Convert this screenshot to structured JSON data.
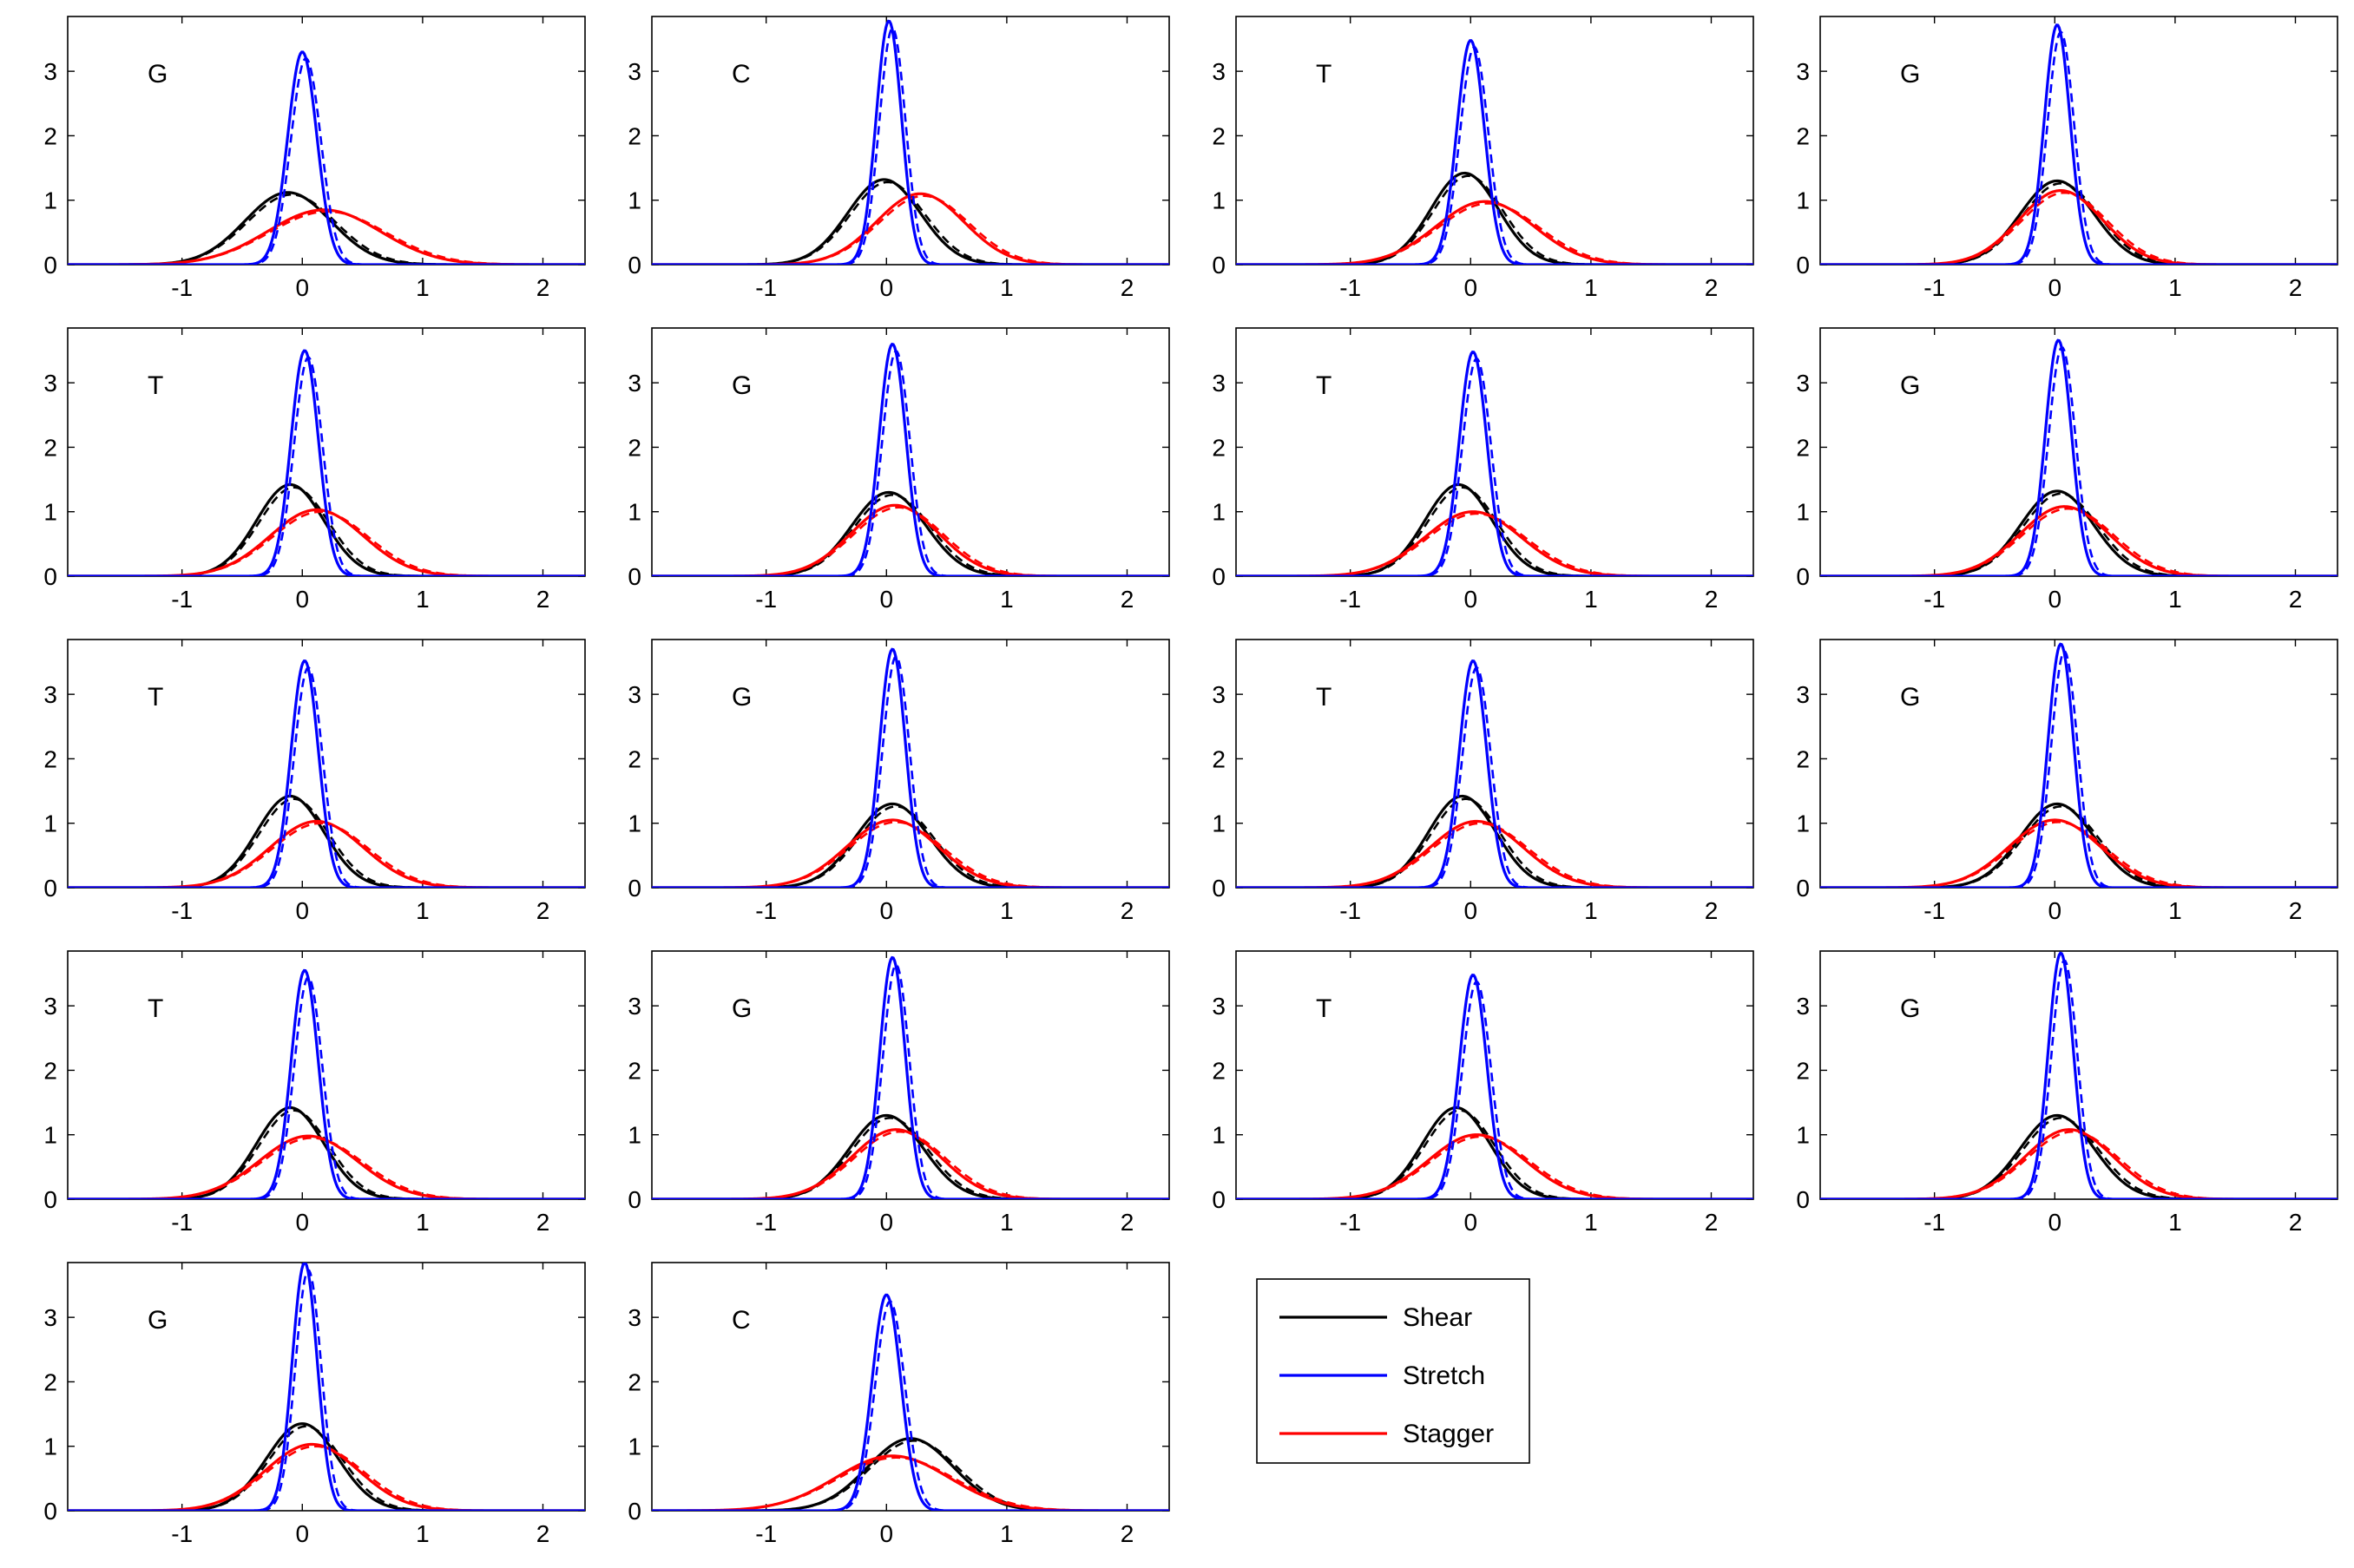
{
  "chart_data": {
    "type": "line",
    "layout": {
      "rows": 5,
      "cols": 4
    },
    "x_range": [
      -1.95,
      2.35
    ],
    "y_range": [
      0,
      3.85
    ],
    "x_ticks": [
      -1,
      0,
      1,
      2
    ],
    "y_ticks": [
      0,
      1,
      2,
      3
    ],
    "grid": false,
    "legend": {
      "placement": "inside-grid-row5-col3",
      "entries": [
        {
          "name": "Shear",
          "color": "#000000"
        },
        {
          "name": "Stretch",
          "color": "#0000ff"
        },
        {
          "name": "Stagger",
          "color": "#ff0000"
        }
      ]
    },
    "series_style": {
      "solid": "simulation",
      "dashed": "fitted"
    },
    "panels": [
      {
        "label": "G",
        "shear": {
          "mu": -0.12,
          "peak": 1.12
        },
        "stretch": {
          "mu": 0.0,
          "peak": 3.3
        },
        "stagger": {
          "mu": 0.18,
          "peak": 0.85
        }
      },
      {
        "label": "C",
        "shear": {
          "mu": -0.02,
          "peak": 1.32
        },
        "stretch": {
          "mu": 0.02,
          "peak": 3.78
        },
        "stagger": {
          "mu": 0.28,
          "peak": 1.1
        }
      },
      {
        "label": "T",
        "shear": {
          "mu": -0.05,
          "peak": 1.42
        },
        "stretch": {
          "mu": 0.0,
          "peak": 3.48
        },
        "stagger": {
          "mu": 0.12,
          "peak": 0.98
        }
      },
      {
        "label": "G",
        "shear": {
          "mu": 0.02,
          "peak": 1.3
        },
        "stretch": {
          "mu": 0.02,
          "peak": 3.72
        },
        "stagger": {
          "mu": 0.05,
          "peak": 1.15
        }
      },
      {
        "label": "T",
        "shear": {
          "mu": -0.1,
          "peak": 1.42
        },
        "stretch": {
          "mu": 0.02,
          "peak": 3.5
        },
        "stagger": {
          "mu": 0.12,
          "peak": 1.03
        }
      },
      {
        "label": "G",
        "shear": {
          "mu": 0.02,
          "peak": 1.3
        },
        "stretch": {
          "mu": 0.05,
          "peak": 3.6
        },
        "stagger": {
          "mu": 0.07,
          "peak": 1.1
        }
      },
      {
        "label": "T",
        "shear": {
          "mu": -0.1,
          "peak": 1.42
        },
        "stretch": {
          "mu": 0.02,
          "peak": 3.48
        },
        "stagger": {
          "mu": 0.02,
          "peak": 1.0
        }
      },
      {
        "label": "G",
        "shear": {
          "mu": 0.02,
          "peak": 1.32
        },
        "stretch": {
          "mu": 0.03,
          "peak": 3.66
        },
        "stagger": {
          "mu": 0.08,
          "peak": 1.08
        }
      },
      {
        "label": "T",
        "shear": {
          "mu": -0.1,
          "peak": 1.42
        },
        "stretch": {
          "mu": 0.02,
          "peak": 3.52
        },
        "stagger": {
          "mu": 0.12,
          "peak": 1.03
        }
      },
      {
        "label": "G",
        "shear": {
          "mu": 0.05,
          "peak": 1.3
        },
        "stretch": {
          "mu": 0.05,
          "peak": 3.7
        },
        "stagger": {
          "mu": 0.05,
          "peak": 1.05
        }
      },
      {
        "label": "T",
        "shear": {
          "mu": -0.07,
          "peak": 1.42
        },
        "stretch": {
          "mu": 0.02,
          "peak": 3.52
        },
        "stagger": {
          "mu": 0.05,
          "peak": 1.03
        }
      },
      {
        "label": "G",
        "shear": {
          "mu": 0.02,
          "peak": 1.3
        },
        "stretch": {
          "mu": 0.05,
          "peak": 3.78
        },
        "stagger": {
          "mu": 0.0,
          "peak": 1.05
        }
      },
      {
        "label": "T",
        "shear": {
          "mu": -0.1,
          "peak": 1.42
        },
        "stretch": {
          "mu": 0.02,
          "peak": 3.55
        },
        "stagger": {
          "mu": 0.05,
          "peak": 0.98
        }
      },
      {
        "label": "G",
        "shear": {
          "mu": 0.0,
          "peak": 1.3
        },
        "stretch": {
          "mu": 0.05,
          "peak": 3.75
        },
        "stagger": {
          "mu": 0.08,
          "peak": 1.08
        }
      },
      {
        "label": "T",
        "shear": {
          "mu": -0.12,
          "peak": 1.42
        },
        "stretch": {
          "mu": 0.02,
          "peak": 3.48
        },
        "stagger": {
          "mu": 0.05,
          "peak": 1.0
        }
      },
      {
        "label": "G",
        "shear": {
          "mu": 0.02,
          "peak": 1.3
        },
        "stretch": {
          "mu": 0.05,
          "peak": 3.82
        },
        "stagger": {
          "mu": 0.12,
          "peak": 1.08
        }
      },
      {
        "label": "G",
        "shear": {
          "mu": 0.0,
          "peak": 1.35
        },
        "stretch": {
          "mu": 0.02,
          "peak": 3.85
        },
        "stagger": {
          "mu": 0.08,
          "peak": 1.03
        }
      },
      {
        "label": "C",
        "shear": {
          "mu": 0.2,
          "peak": 1.12
        },
        "stretch": {
          "mu": 0.0,
          "peak": 3.35
        },
        "stagger": {
          "mu": 0.05,
          "peak": 0.85
        }
      }
    ]
  }
}
